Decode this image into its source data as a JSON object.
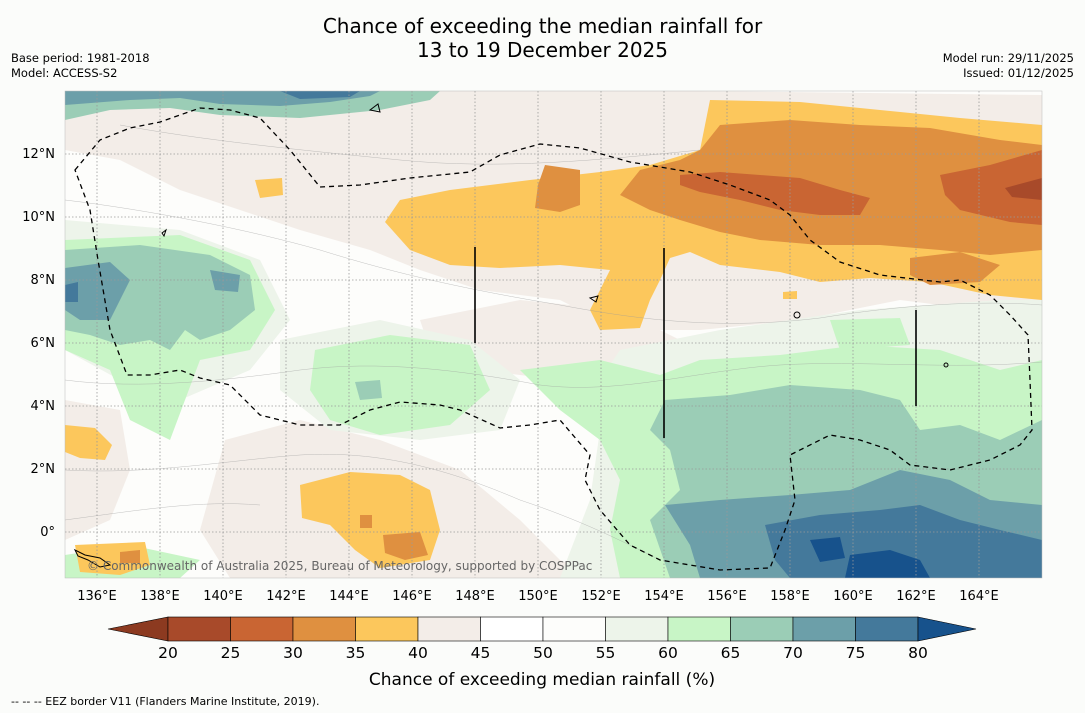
{
  "title": {
    "line1": "Chance of exceeding the median rainfall for",
    "line2": "13 to 19 December 2025"
  },
  "meta_left": {
    "base_period": "Base period: 1981-2018",
    "model": "Model: ACCESS-S2"
  },
  "meta_right": {
    "model_run": "Model run: 29/11/2025",
    "issued": "Issued: 01/12/2025"
  },
  "map": {
    "lon_labels": [
      "136°E",
      "138°E",
      "140°E",
      "142°E",
      "144°E",
      "146°E",
      "148°E",
      "150°E",
      "152°E",
      "154°E",
      "156°E",
      "158°E",
      "160°E",
      "162°E",
      "164°E"
    ],
    "lat_labels": [
      "12°N",
      "10°N",
      "8°N",
      "6°N",
      "4°N",
      "2°N",
      "0°"
    ],
    "copyright": "© Commonwealth of Australia 2025, Bureau of Meteorology, supported by COSPPac"
  },
  "colorbar": {
    "ticks": [
      "20",
      "25",
      "30",
      "35",
      "40",
      "45",
      "50",
      "55",
      "60",
      "65",
      "70",
      "75",
      "80"
    ],
    "title": "Chance of exceeding median rainfall (%)",
    "colors": {
      "lt20": "#8c3a20",
      "c20_25": "#a84a2a",
      "c25_30": "#c96533",
      "c30_35": "#df9040",
      "c35_40": "#fcc75c",
      "c40_45": "#f3ede8",
      "c45_50": "#ffffff",
      "c50_55": "#fdfdfb",
      "c55_60": "#edf4ea",
      "c60_65": "#c8f5c6",
      "c65_70": "#9bcdb6",
      "c70_75": "#6c9fa9",
      "c75_80": "#44799b",
      "gt80": "#17528c"
    }
  },
  "footer": "--  --  -- EEZ border V11 (Flanders Marine Institute, 2019)."
}
